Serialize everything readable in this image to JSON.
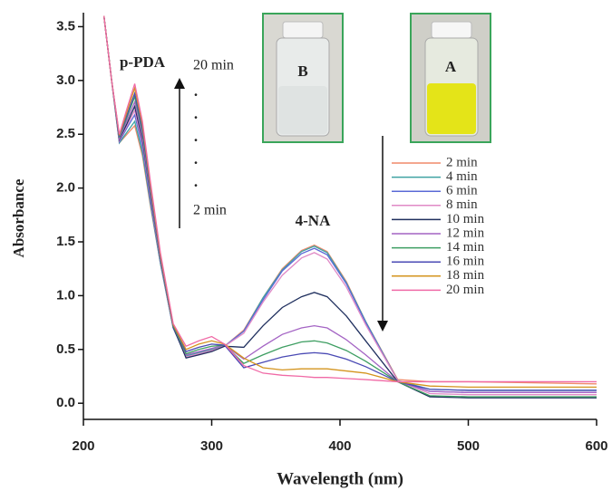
{
  "chart_data": {
    "type": "line",
    "x_label": "Wavelength (nm)",
    "y_label": "Absorbance",
    "x": [
      216,
      222,
      228,
      234,
      240,
      246,
      252,
      260,
      270,
      280,
      290,
      300,
      310,
      325,
      340,
      355,
      370,
      380,
      390,
      405,
      420,
      445,
      470,
      500,
      550,
      600
    ],
    "xlim": [
      200,
      600
    ],
    "xticks": [
      200,
      300,
      400,
      500,
      600
    ],
    "ylim": [
      -0.15,
      3.63
    ],
    "yticks": [
      {
        "value": 0,
        "label": "0.0"
      },
      {
        "value": 0.5,
        "label": "0.5"
      },
      {
        "value": 1,
        "label": "1.0"
      },
      {
        "value": 1.5,
        "label": "1.5"
      },
      {
        "value": 2,
        "label": "2.0"
      },
      {
        "value": 2.5,
        "label": "2.5"
      },
      {
        "value": 3,
        "label": "3.0"
      },
      {
        "value": 3.5,
        "label": "3.5"
      }
    ],
    "series": [
      {
        "name": "2 min",
        "color": "#f08a6a",
        "values": [
          3.6,
          3.0,
          2.42,
          2.5,
          2.58,
          2.3,
          1.85,
          1.3,
          0.7,
          0.44,
          0.47,
          0.5,
          0.53,
          0.68,
          0.98,
          1.25,
          1.42,
          1.47,
          1.41,
          1.13,
          0.76,
          0.22,
          0.2,
          0.2,
          0.19,
          0.18
        ]
      },
      {
        "name": "4 min",
        "color": "#3fa3a3",
        "values": [
          3.6,
          3.0,
          2.42,
          2.52,
          2.62,
          2.33,
          1.87,
          1.3,
          0.7,
          0.44,
          0.47,
          0.5,
          0.53,
          0.67,
          0.98,
          1.24,
          1.41,
          1.46,
          1.4,
          1.12,
          0.76,
          0.21,
          0.13,
          0.12,
          0.12,
          0.12
        ]
      },
      {
        "name": "6 min",
        "color": "#5a6ad6",
        "values": [
          3.6,
          3.0,
          2.43,
          2.56,
          2.68,
          2.38,
          1.9,
          1.32,
          0.7,
          0.43,
          0.46,
          0.49,
          0.53,
          0.67,
          0.96,
          1.23,
          1.39,
          1.44,
          1.38,
          1.11,
          0.75,
          0.21,
          0.11,
          0.1,
          0.1,
          0.1
        ]
      },
      {
        "name": "8 min",
        "color": "#e08ac6",
        "values": [
          3.6,
          3.0,
          2.44,
          2.58,
          2.72,
          2.42,
          1.93,
          1.33,
          0.71,
          0.43,
          0.46,
          0.49,
          0.53,
          0.65,
          0.94,
          1.19,
          1.35,
          1.4,
          1.34,
          1.08,
          0.73,
          0.21,
          0.09,
          0.08,
          0.08,
          0.08
        ]
      },
      {
        "name": "10 min",
        "color": "#1f2f5e",
        "values": [
          3.6,
          3.0,
          2.45,
          2.6,
          2.76,
          2.45,
          1.95,
          1.34,
          0.71,
          0.42,
          0.45,
          0.48,
          0.53,
          0.52,
          0.72,
          0.89,
          0.99,
          1.03,
          0.99,
          0.81,
          0.58,
          0.2,
          0.06,
          0.05,
          0.05,
          0.05
        ]
      },
      {
        "name": "12 min",
        "color": "#a464c4",
        "values": [
          3.6,
          3.0,
          2.46,
          2.63,
          2.8,
          2.48,
          1.97,
          1.35,
          0.72,
          0.45,
          0.48,
          0.51,
          0.54,
          0.41,
          0.53,
          0.64,
          0.7,
          0.72,
          0.7,
          0.59,
          0.45,
          0.2,
          0.11,
          0.1,
          0.1,
          0.1
        ]
      },
      {
        "name": "14 min",
        "color": "#3e9e62",
        "values": [
          3.6,
          3.0,
          2.47,
          2.66,
          2.85,
          2.52,
          2.0,
          1.36,
          0.72,
          0.46,
          0.5,
          0.53,
          0.54,
          0.37,
          0.45,
          0.52,
          0.57,
          0.58,
          0.56,
          0.49,
          0.39,
          0.2,
          0.07,
          0.06,
          0.06,
          0.06
        ]
      },
      {
        "name": "16 min",
        "color": "#4a4ab4",
        "values": [
          3.6,
          3.0,
          2.48,
          2.68,
          2.88,
          2.55,
          2.02,
          1.37,
          0.73,
          0.48,
          0.52,
          0.55,
          0.54,
          0.33,
          0.38,
          0.43,
          0.46,
          0.47,
          0.46,
          0.41,
          0.34,
          0.2,
          0.13,
          0.12,
          0.12,
          0.12
        ]
      },
      {
        "name": "18 min",
        "color": "#d4941e",
        "values": [
          3.6,
          3.0,
          2.49,
          2.71,
          2.93,
          2.59,
          2.05,
          1.38,
          0.73,
          0.5,
          0.55,
          0.58,
          0.55,
          0.42,
          0.33,
          0.31,
          0.32,
          0.32,
          0.32,
          0.3,
          0.28,
          0.2,
          0.16,
          0.15,
          0.15,
          0.15
        ]
      },
      {
        "name": "20 min",
        "color": "#f06aa6",
        "values": [
          3.6,
          3.0,
          2.5,
          2.74,
          2.97,
          2.62,
          2.08,
          1.4,
          0.74,
          0.53,
          0.58,
          0.62,
          0.55,
          0.35,
          0.28,
          0.26,
          0.25,
          0.24,
          0.24,
          0.23,
          0.22,
          0.2,
          0.2,
          0.2,
          0.2,
          0.2
        ]
      }
    ],
    "annotations": {
      "peak1": "p-PDA",
      "peak2": "4-NA",
      "time_end": "20 min",
      "time_start": "2 min",
      "dots": [
        ".",
        ".",
        ".",
        ".",
        "."
      ],
      "photo_b": "B",
      "photo_a": "A"
    }
  }
}
